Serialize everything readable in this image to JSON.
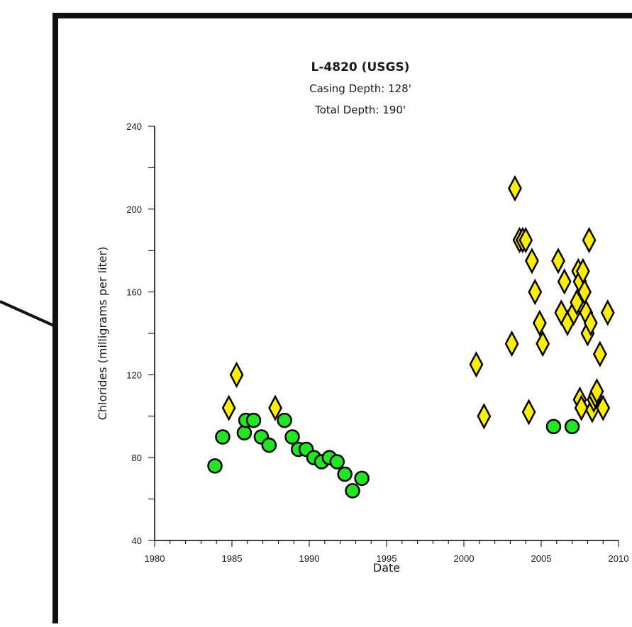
{
  "chart_data": {
    "type": "scatter",
    "title": "L-4820  (USGS)",
    "subtitle_lines": [
      "Casing Depth:  128'",
      "Total Depth:  190'"
    ],
    "xlabel": "Date",
    "ylabel": "Chlorides (milligrams per liter)",
    "xlim": [
      1980,
      2010
    ],
    "ylim": [
      40,
      240
    ],
    "x_major_ticks": [
      1980,
      1985,
      1990,
      1995,
      2000,
      2005,
      2010
    ],
    "x_minor_step": 1,
    "y_major_ticks": [
      40,
      80,
      120,
      160,
      200,
      240
    ],
    "y_minor_step": 20,
    "x_tick_labels": [
      "1980",
      "1985",
      "1990",
      "1995",
      "2000",
      "2005",
      "2010"
    ],
    "y_tick_labels": [
      "40",
      "80",
      "120",
      "160",
      "200",
      "240"
    ],
    "grid": false,
    "legend": "none",
    "series": [
      {
        "marker": "circle",
        "color": "#22e622",
        "points": [
          [
            1983.9,
            76
          ],
          [
            1984.4,
            90
          ],
          [
            1985.8,
            92
          ],
          [
            1985.9,
            98
          ],
          [
            1986.4,
            98
          ],
          [
            1986.9,
            90
          ],
          [
            1987.4,
            86
          ],
          [
            1988.4,
            98
          ],
          [
            1988.9,
            90
          ],
          [
            1989.3,
            84
          ],
          [
            1989.8,
            84
          ],
          [
            1990.3,
            80
          ],
          [
            1990.8,
            78
          ],
          [
            1991.3,
            80
          ],
          [
            1991.8,
            78
          ],
          [
            1992.3,
            72
          ],
          [
            1992.8,
            64
          ],
          [
            1993.4,
            70
          ],
          [
            2005.8,
            95
          ],
          [
            2007.0,
            95
          ]
        ]
      },
      {
        "marker": "diamond",
        "color": "#ffee00",
        "points": [
          [
            1984.8,
            104
          ],
          [
            1985.3,
            120
          ],
          [
            1987.8,
            104
          ],
          [
            2000.8,
            125
          ],
          [
            2001.3,
            100
          ],
          [
            2003.1,
            135
          ],
          [
            2003.3,
            210
          ],
          [
            2003.6,
            185
          ],
          [
            2003.8,
            185
          ],
          [
            2004.0,
            185
          ],
          [
            2004.2,
            102
          ],
          [
            2004.4,
            175
          ],
          [
            2004.6,
            160
          ],
          [
            2004.9,
            145
          ],
          [
            2005.1,
            135
          ],
          [
            2006.1,
            175
          ],
          [
            2006.3,
            150
          ],
          [
            2006.5,
            165
          ],
          [
            2006.7,
            145
          ],
          [
            2007.1,
            150
          ],
          [
            2007.3,
            155
          ],
          [
            2007.4,
            170
          ],
          [
            2007.5,
            165
          ],
          [
            2007.5,
            108
          ],
          [
            2007.6,
            104
          ],
          [
            2007.7,
            170
          ],
          [
            2007.8,
            160
          ],
          [
            2007.9,
            150
          ],
          [
            2008.0,
            140
          ],
          [
            2008.1,
            185
          ],
          [
            2008.2,
            145
          ],
          [
            2008.3,
            103
          ],
          [
            2008.4,
            108
          ],
          [
            2008.5,
            110
          ],
          [
            2008.6,
            112
          ],
          [
            2008.8,
            130
          ],
          [
            2009.0,
            104
          ],
          [
            2009.3,
            150
          ]
        ]
      }
    ]
  }
}
